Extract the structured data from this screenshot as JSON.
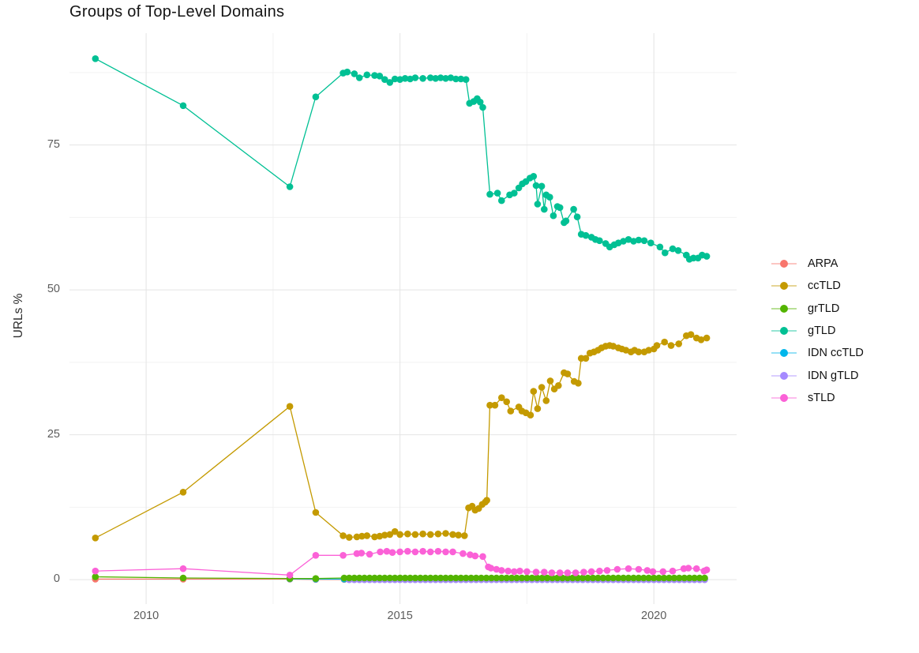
{
  "page": {
    "background": "#FFFFFF"
  },
  "chart_data": {
    "type": "line",
    "title": "Groups of Top-Level Domains",
    "xlabel": "",
    "ylabel": "URLs %",
    "x_ticks": [
      2010,
      2015,
      2020
    ],
    "y_ticks": [
      0,
      25,
      50,
      75
    ],
    "x_minor_ticks": [
      2012.5,
      2017.5
    ],
    "y_minor_ticks": [
      12.5,
      37.5,
      62.5,
      87.5
    ],
    "xlim": [
      2008.49,
      2021.63
    ],
    "ylim": [
      -4.2,
      94.3
    ],
    "grid": true,
    "legend_position": "right",
    "series": [
      {
        "name": "ARPA",
        "color": "#F8766D",
        "points": [
          [
            2009.0,
            0.1
          ],
          [
            2010.73,
            0.1
          ],
          [
            2012.83,
            0.1
          ],
          [
            2013.34,
            0.05
          ]
        ],
        "flat": {
          "x0": 2013.9,
          "x1": 2021.0,
          "dx": 0.1,
          "y": 0.05
        }
      },
      {
        "name": "ccTLD",
        "color": "#C49A00",
        "points": [
          [
            2009.0,
            7.2
          ],
          [
            2010.73,
            15.1
          ],
          [
            2012.83,
            29.9
          ],
          [
            2013.34,
            11.6
          ],
          [
            2013.88,
            7.6
          ],
          [
            2014.0,
            7.3
          ],
          [
            2014.15,
            7.4
          ],
          [
            2014.25,
            7.5
          ],
          [
            2014.35,
            7.6
          ],
          [
            2014.5,
            7.4
          ],
          [
            2014.6,
            7.5
          ],
          [
            2014.7,
            7.7
          ],
          [
            2014.8,
            7.8
          ],
          [
            2014.9,
            8.3
          ],
          [
            2015.0,
            7.8
          ],
          [
            2015.15,
            7.9
          ],
          [
            2015.3,
            7.8
          ],
          [
            2015.45,
            7.9
          ],
          [
            2015.6,
            7.8
          ],
          [
            2015.75,
            7.9
          ],
          [
            2015.9,
            8.0
          ],
          [
            2016.04,
            7.8
          ],
          [
            2016.15,
            7.7
          ],
          [
            2016.27,
            7.6
          ],
          [
            2016.35,
            12.4
          ],
          [
            2016.42,
            12.7
          ],
          [
            2016.48,
            12.0
          ],
          [
            2016.55,
            12.3
          ],
          [
            2016.62,
            13.0
          ],
          [
            2016.68,
            13.4
          ],
          [
            2016.71,
            13.7
          ],
          [
            2016.77,
            30.1
          ],
          [
            2016.87,
            30.1
          ],
          [
            2017.0,
            31.4
          ],
          [
            2017.1,
            30.7
          ],
          [
            2017.18,
            29.1
          ],
          [
            2017.34,
            29.8
          ],
          [
            2017.4,
            29.1
          ],
          [
            2017.48,
            28.8
          ],
          [
            2017.57,
            28.4
          ],
          [
            2017.63,
            32.5
          ],
          [
            2017.71,
            29.5
          ],
          [
            2017.79,
            33.2
          ],
          [
            2017.88,
            30.9
          ],
          [
            2017.96,
            34.3
          ],
          [
            2018.04,
            32.9
          ],
          [
            2018.12,
            33.5
          ],
          [
            2018.23,
            35.7
          ],
          [
            2018.3,
            35.5
          ],
          [
            2018.43,
            34.2
          ],
          [
            2018.51,
            33.9
          ],
          [
            2018.57,
            38.2
          ],
          [
            2018.66,
            38.2
          ],
          [
            2018.74,
            39.1
          ],
          [
            2018.82,
            39.3
          ],
          [
            2018.9,
            39.6
          ],
          [
            2018.97,
            40.0
          ],
          [
            2019.05,
            40.3
          ],
          [
            2019.13,
            40.4
          ],
          [
            2019.2,
            40.3
          ],
          [
            2019.3,
            40.0
          ],
          [
            2019.37,
            39.8
          ],
          [
            2019.45,
            39.6
          ],
          [
            2019.55,
            39.3
          ],
          [
            2019.62,
            39.6
          ],
          [
            2019.7,
            39.3
          ],
          [
            2019.81,
            39.3
          ],
          [
            2019.9,
            39.6
          ],
          [
            2020.0,
            39.8
          ],
          [
            2020.06,
            40.4
          ],
          [
            2020.21,
            41.0
          ],
          [
            2020.34,
            40.4
          ],
          [
            2020.49,
            40.7
          ],
          [
            2020.64,
            42.1
          ],
          [
            2020.73,
            42.3
          ],
          [
            2020.84,
            41.7
          ],
          [
            2020.93,
            41.4
          ],
          [
            2021.04,
            41.7
          ]
        ]
      },
      {
        "name": "grTLD",
        "color": "#53B400",
        "points": [
          [
            2009.0,
            0.5
          ],
          [
            2010.73,
            0.3
          ],
          [
            2012.83,
            0.2
          ],
          [
            2013.34,
            0.2
          ]
        ],
        "flat": {
          "x0": 2013.9,
          "x1": 2021.04,
          "dx": 0.1,
          "y": 0.3
        }
      },
      {
        "name": "gTLD",
        "color": "#00C094",
        "points": [
          [
            2009.0,
            89.9
          ],
          [
            2010.73,
            81.8
          ],
          [
            2012.83,
            67.8
          ],
          [
            2013.34,
            83.3
          ],
          [
            2013.88,
            87.4
          ],
          [
            2013.96,
            87.6
          ],
          [
            2014.1,
            87.3
          ],
          [
            2014.2,
            86.6
          ],
          [
            2014.35,
            87.1
          ],
          [
            2014.5,
            87.0
          ],
          [
            2014.6,
            86.9
          ],
          [
            2014.7,
            86.3
          ],
          [
            2014.8,
            85.8
          ],
          [
            2014.9,
            86.4
          ],
          [
            2015.0,
            86.3
          ],
          [
            2015.1,
            86.5
          ],
          [
            2015.2,
            86.4
          ],
          [
            2015.3,
            86.6
          ],
          [
            2015.45,
            86.5
          ],
          [
            2015.6,
            86.6
          ],
          [
            2015.7,
            86.5
          ],
          [
            2015.8,
            86.6
          ],
          [
            2015.9,
            86.5
          ],
          [
            2016.0,
            86.6
          ],
          [
            2016.1,
            86.4
          ],
          [
            2016.2,
            86.4
          ],
          [
            2016.3,
            86.3
          ],
          [
            2016.37,
            82.2
          ],
          [
            2016.45,
            82.5
          ],
          [
            2016.52,
            83.0
          ],
          [
            2016.58,
            82.4
          ],
          [
            2016.63,
            81.5
          ],
          [
            2016.77,
            66.5
          ],
          [
            2016.92,
            66.7
          ],
          [
            2017.0,
            65.4
          ],
          [
            2017.16,
            66.4
          ],
          [
            2017.25,
            66.7
          ],
          [
            2017.34,
            67.6
          ],
          [
            2017.41,
            68.3
          ],
          [
            2017.48,
            68.7
          ],
          [
            2017.56,
            69.3
          ],
          [
            2017.63,
            69.6
          ],
          [
            2017.68,
            68.0
          ],
          [
            2017.71,
            64.8
          ],
          [
            2017.79,
            67.9
          ],
          [
            2017.84,
            63.9
          ],
          [
            2017.88,
            66.4
          ],
          [
            2017.95,
            66.0
          ],
          [
            2018.02,
            62.8
          ],
          [
            2018.1,
            64.4
          ],
          [
            2018.15,
            64.2
          ],
          [
            2018.23,
            61.6
          ],
          [
            2018.27,
            61.9
          ],
          [
            2018.42,
            63.9
          ],
          [
            2018.49,
            62.6
          ],
          [
            2018.57,
            59.6
          ],
          [
            2018.66,
            59.4
          ],
          [
            2018.77,
            59.1
          ],
          [
            2018.85,
            58.7
          ],
          [
            2018.93,
            58.5
          ],
          [
            2019.05,
            58.0
          ],
          [
            2019.13,
            57.4
          ],
          [
            2019.22,
            57.8
          ],
          [
            2019.3,
            58.1
          ],
          [
            2019.4,
            58.4
          ],
          [
            2019.5,
            58.7
          ],
          [
            2019.6,
            58.4
          ],
          [
            2019.7,
            58.6
          ],
          [
            2019.81,
            58.5
          ],
          [
            2019.94,
            58.1
          ],
          [
            2020.12,
            57.4
          ],
          [
            2020.22,
            56.4
          ],
          [
            2020.37,
            57.1
          ],
          [
            2020.48,
            56.8
          ],
          [
            2020.64,
            56.0
          ],
          [
            2020.7,
            55.3
          ],
          [
            2020.78,
            55.5
          ],
          [
            2020.87,
            55.5
          ],
          [
            2020.95,
            56.0
          ],
          [
            2021.04,
            55.8
          ]
        ]
      },
      {
        "name": "IDN ccTLD",
        "color": "#00B6EB",
        "points": [
          [
            2012.83,
            0.15
          ],
          [
            2013.34,
            0.1
          ]
        ],
        "flat": {
          "x0": 2013.9,
          "x1": 2021.0,
          "dx": 0.1,
          "y": 0.1
        }
      },
      {
        "name": "IDN gTLD",
        "color": "#A58AFF",
        "points": [],
        "flat": {
          "x0": 2014.0,
          "x1": 2021.0,
          "dx": 0.1,
          "y": 0.0
        }
      },
      {
        "name": "sTLD",
        "color": "#FB61D7",
        "points": [
          [
            2009.0,
            1.5
          ],
          [
            2010.73,
            1.9
          ],
          [
            2012.83,
            0.8
          ],
          [
            2013.34,
            4.2
          ],
          [
            2013.88,
            4.2
          ],
          [
            2014.15,
            4.5
          ],
          [
            2014.24,
            4.6
          ],
          [
            2014.4,
            4.4
          ],
          [
            2014.61,
            4.8
          ],
          [
            2014.74,
            4.9
          ],
          [
            2014.85,
            4.7
          ],
          [
            2015.0,
            4.8
          ],
          [
            2015.15,
            4.9
          ],
          [
            2015.3,
            4.8
          ],
          [
            2015.45,
            4.9
          ],
          [
            2015.6,
            4.8
          ],
          [
            2015.75,
            4.9
          ],
          [
            2015.9,
            4.8
          ],
          [
            2016.04,
            4.8
          ],
          [
            2016.24,
            4.5
          ],
          [
            2016.38,
            4.3
          ],
          [
            2016.48,
            4.1
          ],
          [
            2016.63,
            4.0
          ],
          [
            2016.74,
            2.2
          ],
          [
            2016.79,
            2.0
          ],
          [
            2016.9,
            1.8
          ],
          [
            2017.0,
            1.6
          ],
          [
            2017.13,
            1.5
          ],
          [
            2017.25,
            1.4
          ],
          [
            2017.36,
            1.5
          ],
          [
            2017.5,
            1.4
          ],
          [
            2017.68,
            1.3
          ],
          [
            2017.84,
            1.3
          ],
          [
            2017.99,
            1.2
          ],
          [
            2018.15,
            1.2
          ],
          [
            2018.3,
            1.2
          ],
          [
            2018.46,
            1.2
          ],
          [
            2018.62,
            1.3
          ],
          [
            2018.77,
            1.4
          ],
          [
            2018.93,
            1.5
          ],
          [
            2019.08,
            1.6
          ],
          [
            2019.28,
            1.8
          ],
          [
            2019.5,
            1.9
          ],
          [
            2019.7,
            1.8
          ],
          [
            2019.87,
            1.6
          ],
          [
            2019.98,
            1.4
          ],
          [
            2020.18,
            1.4
          ],
          [
            2020.37,
            1.5
          ],
          [
            2020.59,
            1.9
          ],
          [
            2020.68,
            2.0
          ],
          [
            2020.84,
            1.9
          ],
          [
            2020.99,
            1.5
          ],
          [
            2021.04,
            1.7
          ]
        ]
      }
    ]
  }
}
